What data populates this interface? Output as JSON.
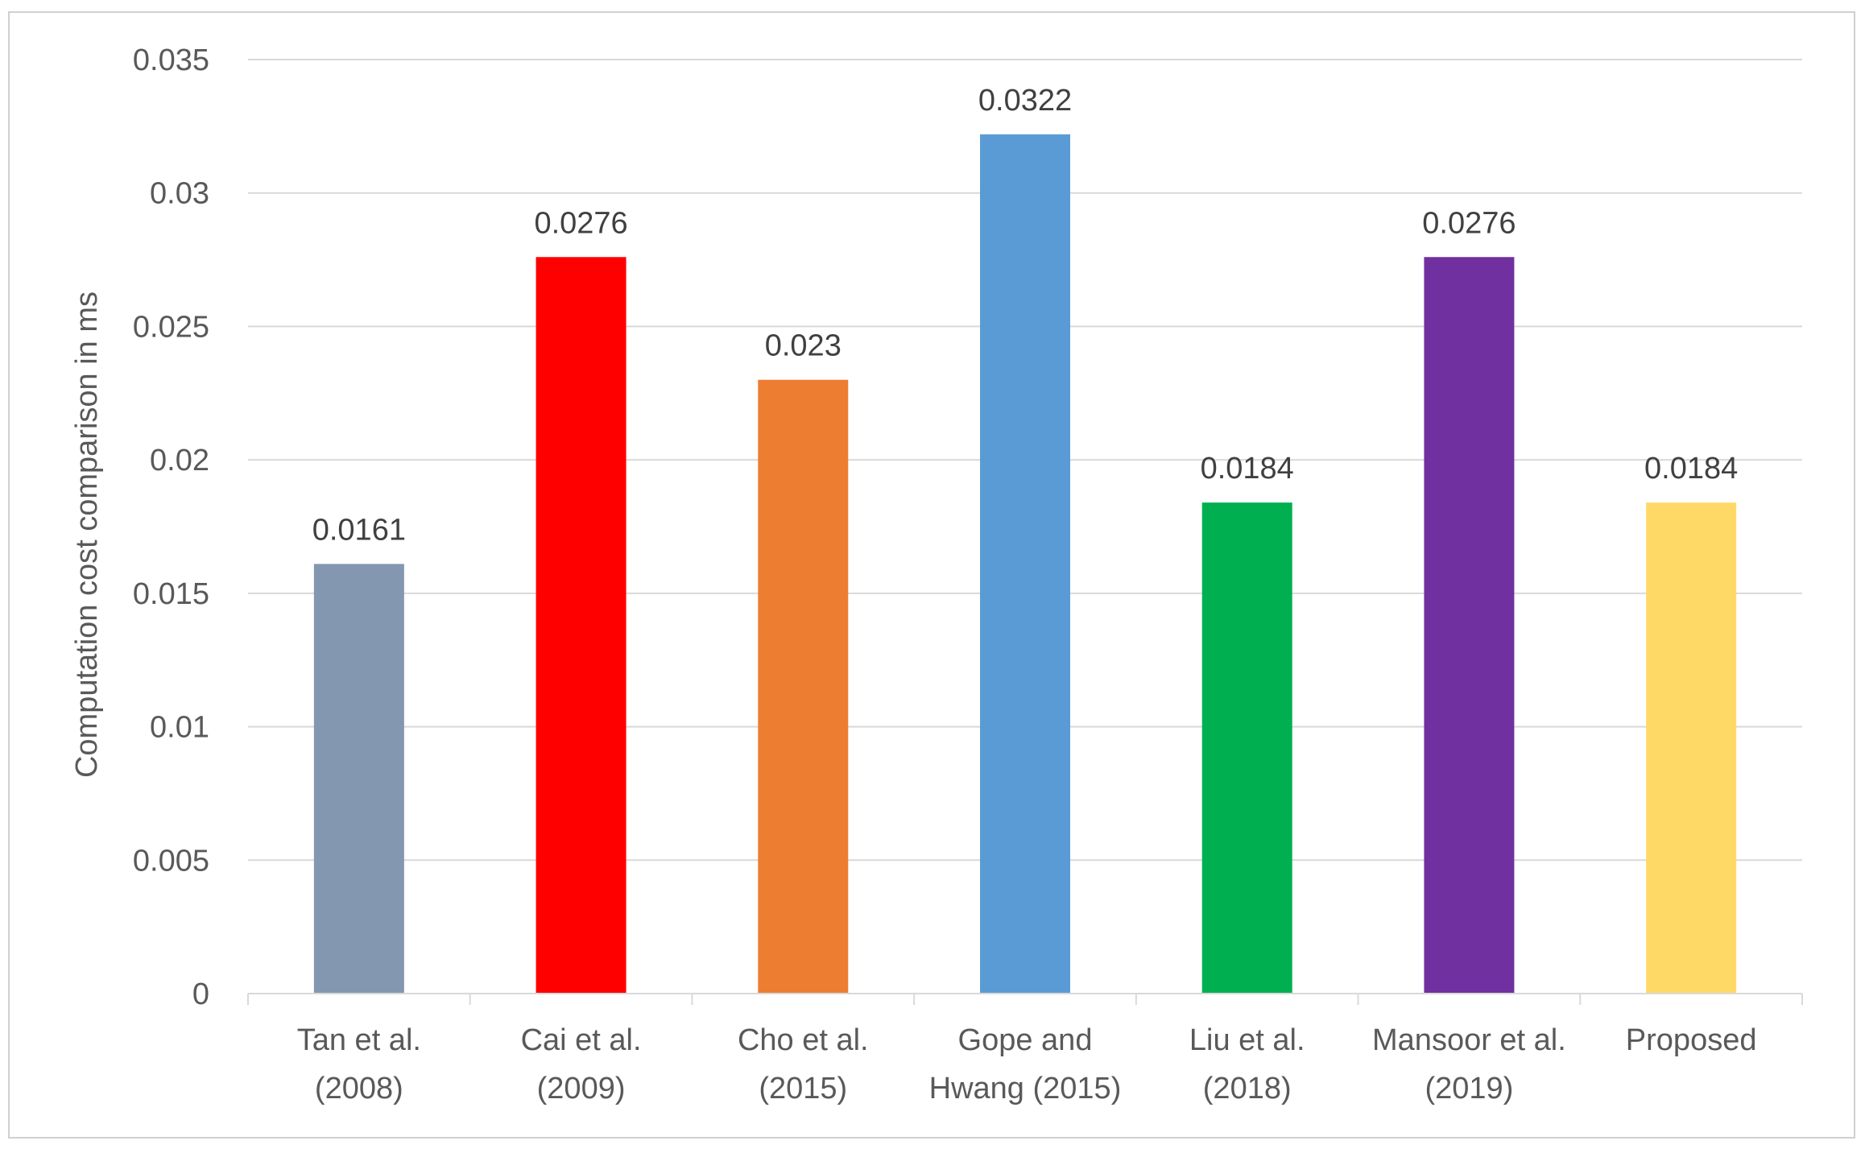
{
  "chart_data": {
    "type": "bar",
    "title": "",
    "xlabel": "",
    "ylabel": "Computation cost comparison in ms",
    "ylim": [
      0,
      0.035
    ],
    "yticks": [
      "0",
      "0.005",
      "0.01",
      "0.015",
      "0.02",
      "0.025",
      "0.03",
      "0.035"
    ],
    "grid": true,
    "legend": "none",
    "categories": [
      [
        "Tan et al.",
        "(2008)"
      ],
      [
        "Cai et al.",
        "(2009)"
      ],
      [
        "Cho et al.",
        "(2015)"
      ],
      [
        "Gope and",
        "Hwang (2015)"
      ],
      [
        "Liu et al.",
        "(2018)"
      ],
      [
        "Mansoor et al.",
        "(2019)"
      ],
      [
        "Proposed"
      ]
    ],
    "values": [
      0.0161,
      0.0276,
      0.023,
      0.0322,
      0.0184,
      0.0276,
      0.0184
    ],
    "data_labels": [
      "0.0161",
      "0.0276",
      "0.023",
      "0.0322",
      "0.0184",
      "0.0276",
      "0.0184"
    ],
    "colors": [
      "#8497B0",
      "#FF0000",
      "#ED7D31",
      "#5B9BD5",
      "#00B050",
      "#7030A0",
      "#FFD966"
    ]
  }
}
